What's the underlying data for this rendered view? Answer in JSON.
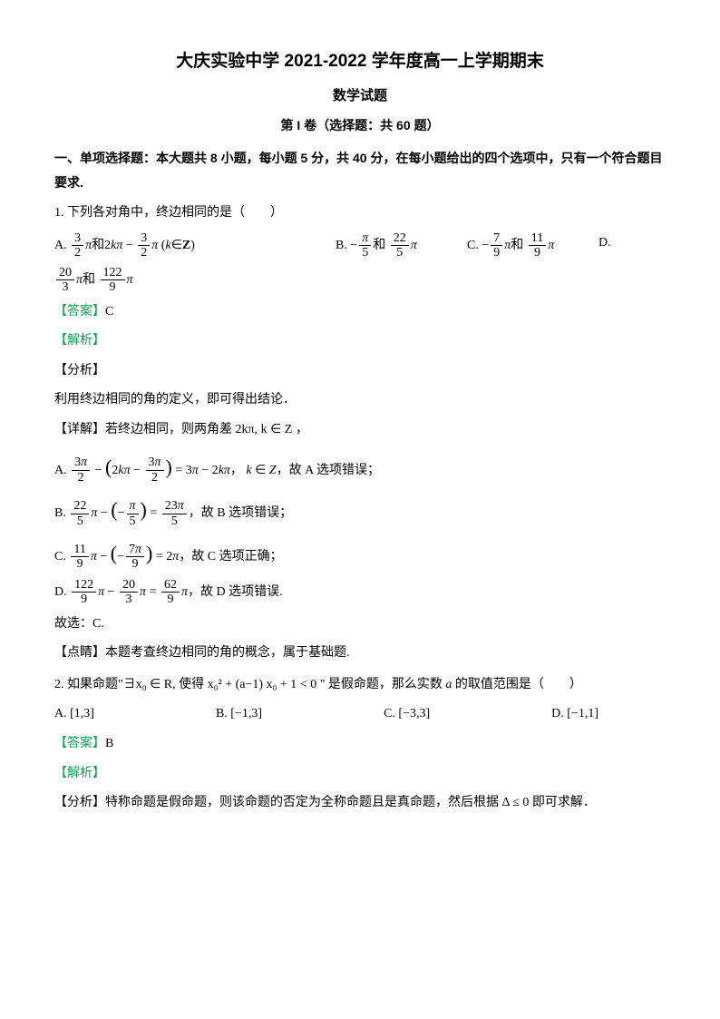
{
  "header": {
    "title": "大庆实验中学 2021-2022 学年度高一上学期期末",
    "subtitle": "数学试题",
    "part": "第 I 卷（选择题：共 60 题）"
  },
  "section1": {
    "header": "一、单项选择题：本大题共 8 小题，每小题 5 分，共 40 分，在每小题给出的四个选项中，只有一个符合题目要求."
  },
  "q1": {
    "stem": "1. 下列各对角中，终边相同的是（　　）",
    "answer_label": "【答案】",
    "answer": "C",
    "explain_label": "【解析】",
    "analysis_label": "【分析】",
    "analysis_text": "利用终边相同的角的定义，即可得出结论．",
    "detail_label": "【详解】",
    "detail_intro": "若终边相同，则两角差 2kπ, k ∈ Z ，",
    "optA_conclusion": "，故 A 选项错误；",
    "optB_conclusion": "，故 B 选项错误；",
    "optC_conclusion": "，故 C 选项正确；",
    "optD_conclusion": "，故 D 选项错误.",
    "therefore": "故选：C.",
    "dianjing_label": "【点睛】",
    "dianjing_text": "本题考查终边相同的角的概念，属于基础题."
  },
  "q2": {
    "stem_prefix": "2. 如果命题\"∃x₀ ∈ R, 使得 x₀² + (a−1) x₀ + 1 < 0 \" 是假命题，那么实数 ",
    "stem_var": "a",
    "stem_suffix": " 的取值范围是（　　）",
    "optA": "A. [1,3]",
    "optB": "B. [−1,3]",
    "optC": "C. [−3,3]",
    "optD": "D. [−1,1]",
    "answer_label": "【答案】",
    "answer": "B",
    "explain_label": "【解析】",
    "analysis_label": "【分析】",
    "analysis_text": "特称命题是假命题，则该命题的否定为全称命题且是真命题，然后根据 Δ ≤ 0 即可求解．"
  },
  "labels": {
    "A": "A.",
    "B": "B.",
    "C": "C.",
    "D": "D."
  }
}
